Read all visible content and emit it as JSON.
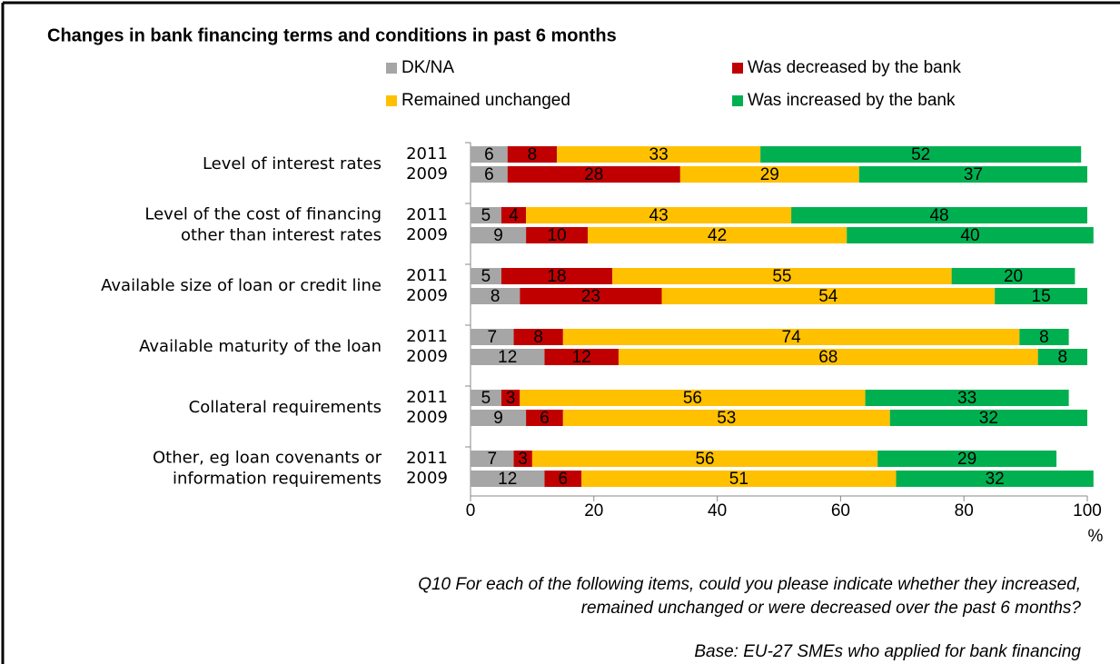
{
  "chart_data": {
    "type": "stacked-barh",
    "title": "Changes in bank financing terms and conditions in past 6 months",
    "groups": [
      [
        "Level of interest rates"
      ],
      [
        "Level of the cost of financing",
        "other than interest rates"
      ],
      [
        "Available size of loan or credit line"
      ],
      [
        "Available maturity of the loan"
      ],
      [
        "Collateral requirements"
      ],
      [
        "Other, eg loan covenants or",
        "information requirements"
      ]
    ],
    "categories": [
      "2011",
      "2009",
      "2011",
      "2009",
      "2011",
      "2009",
      "2011",
      "2009",
      "2011",
      "2009",
      "2011",
      "2009"
    ],
    "series": [
      {
        "name": "DK/NA",
        "color": "#a6a6a6",
        "label_color": "#222222",
        "values": [
          6,
          6,
          5,
          9,
          5,
          8,
          7,
          12,
          5,
          9,
          7,
          12
        ]
      },
      {
        "name": "Was decreased by the bank",
        "color": "#c00000",
        "label_color": "#ffffff",
        "values": [
          8,
          28,
          4,
          10,
          18,
          23,
          8,
          12,
          3,
          6,
          3,
          6
        ]
      },
      {
        "name": "Remained unchanged",
        "color": "#ffc000",
        "label_color": "#ffffff",
        "values": [
          33,
          29,
          43,
          42,
          55,
          54,
          74,
          68,
          56,
          53,
          56,
          51
        ]
      },
      {
        "name": "Was increased by the bank",
        "color": "#00b050",
        "label_color": "#222222",
        "values": [
          52,
          37,
          48,
          40,
          20,
          15,
          8,
          8,
          33,
          32,
          29,
          32
        ]
      }
    ],
    "xlim": [
      0,
      100
    ],
    "xticks": [
      0,
      20,
      40,
      60,
      80,
      100
    ],
    "xlabel": "%",
    "notes": [
      "Q10  For each of the following items, could you please indicate whether they increased,",
      "remained unchanged or were decreased over the past 6 months?",
      "Base: EU-27 SMEs who applied for bank financing"
    ]
  }
}
